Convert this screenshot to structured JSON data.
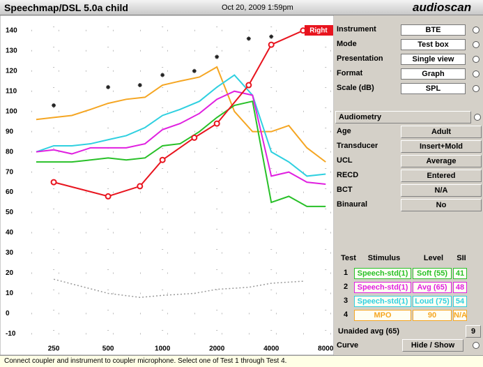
{
  "header": {
    "title": "Speechmap/DSL 5.0a child",
    "date": "Oct 20, 2009 1:59pm",
    "logo": "audioscan"
  },
  "chart_data": {
    "type": "line",
    "log_x": true,
    "grid": true,
    "badge": "Right",
    "badge_color": "#e8141e",
    "xlim": [
      188,
      8800
    ],
    "ylim": [
      -14,
      142
    ],
    "xticks": [
      250,
      500,
      1000,
      2000,
      4000,
      8000
    ],
    "yticks": [
      -10,
      0,
      10,
      20,
      30,
      40,
      50,
      60,
      70,
      80,
      90,
      100,
      110,
      120,
      130,
      140
    ],
    "series": [
      {
        "color": "#f5a623",
        "x": [
          200,
          250,
          315,
          400,
          500,
          630,
          800,
          1000,
          1250,
          1600,
          2000,
          2500,
          3150,
          4000,
          5000,
          6300,
          8000
        ],
        "values": [
          96,
          97,
          98,
          101,
          104,
          106,
          107,
          113,
          115,
          117,
          122,
          100,
          90,
          90,
          93,
          82,
          75
        ]
      },
      {
        "color": "#2fd0e0",
        "x": [
          200,
          250,
          315,
          400,
          500,
          630,
          800,
          1000,
          1250,
          1600,
          2000,
          2500,
          3150,
          4000,
          5000,
          6300,
          8000
        ],
        "values": [
          80,
          83,
          83,
          84,
          86,
          88,
          92,
          98,
          101,
          105,
          112,
          118,
          108,
          80,
          75,
          68,
          69
        ]
      },
      {
        "color": "#e020e0",
        "x": [
          200,
          250,
          315,
          400,
          500,
          630,
          800,
          1000,
          1250,
          1600,
          2000,
          2500,
          3150,
          4000,
          5000,
          6300,
          8000
        ],
        "values": [
          80,
          81,
          79,
          82,
          82,
          82,
          84,
          91,
          94,
          99,
          106,
          110,
          108,
          68,
          70,
          65,
          64
        ]
      },
      {
        "color": "#28c028",
        "x": [
          200,
          250,
          315,
          400,
          500,
          630,
          800,
          1000,
          1250,
          1600,
          2000,
          2500,
          3150,
          4000,
          5000,
          6300,
          8000
        ],
        "values": [
          75,
          75,
          75,
          76,
          77,
          76,
          77,
          83,
          84,
          90,
          97,
          103,
          105,
          55,
          58,
          53,
          53
        ]
      },
      {
        "color": "#e8141e",
        "marker": "circle",
        "x": [
          250,
          500,
          750,
          1000,
          1500,
          2000,
          3000,
          4000,
          6000
        ],
        "values": [
          65,
          58,
          63,
          76,
          87,
          94,
          113,
          133,
          140
        ]
      },
      {
        "color": "#999999",
        "dashed": true,
        "x": [
          250,
          500,
          750,
          1000,
          1500,
          2000,
          3000,
          4000,
          6000
        ],
        "values": [
          17,
          10,
          8,
          9,
          10,
          12,
          13,
          15,
          16
        ]
      },
      {
        "color": "#222222",
        "marker": "star",
        "line": false,
        "x": [
          250,
          500,
          750,
          1000,
          1500,
          2000,
          3000,
          4000
        ],
        "values": [
          103,
          112,
          113,
          118,
          120,
          127,
          136,
          137
        ]
      }
    ]
  },
  "settings": [
    {
      "label": "Instrument",
      "value": "BTE"
    },
    {
      "label": "Mode",
      "value": "Test box"
    },
    {
      "label": "Presentation",
      "value": "Single view"
    },
    {
      "label": "Format",
      "value": "Graph"
    },
    {
      "label": "Scale (dB)",
      "value": "SPL"
    }
  ],
  "audiometry_button": "Audiometry",
  "audiometry": [
    {
      "label": "Age",
      "value": "Adult"
    },
    {
      "label": "Transducer",
      "value": "Insert+Mold"
    },
    {
      "label": "UCL",
      "value": "Average"
    },
    {
      "label": "RECD",
      "value": "Entered"
    },
    {
      "label": "BCT",
      "value": "N/A"
    },
    {
      "label": "Binaural",
      "value": "No"
    }
  ],
  "tests": {
    "headers": [
      "Test",
      "Stimulus",
      "Level",
      "SII"
    ],
    "rows": [
      [
        "1",
        "Speech-std(1)",
        "Soft (55)",
        "41"
      ],
      [
        "2",
        "Speech-std(1)",
        "Avg (65)",
        "48"
      ],
      [
        "3",
        "Speech-std(1)",
        "Loud (75)",
        "54"
      ],
      [
        "4",
        "MPO",
        "90",
        "N/A"
      ]
    ]
  },
  "unaided": {
    "label": "Unaided avg (65)",
    "value": "9"
  },
  "curve": {
    "label": "Curve",
    "button": "Hide / Show"
  },
  "status": "Connect coupler and instrument to coupler microphone.  Select one of Test 1 through Test 4."
}
